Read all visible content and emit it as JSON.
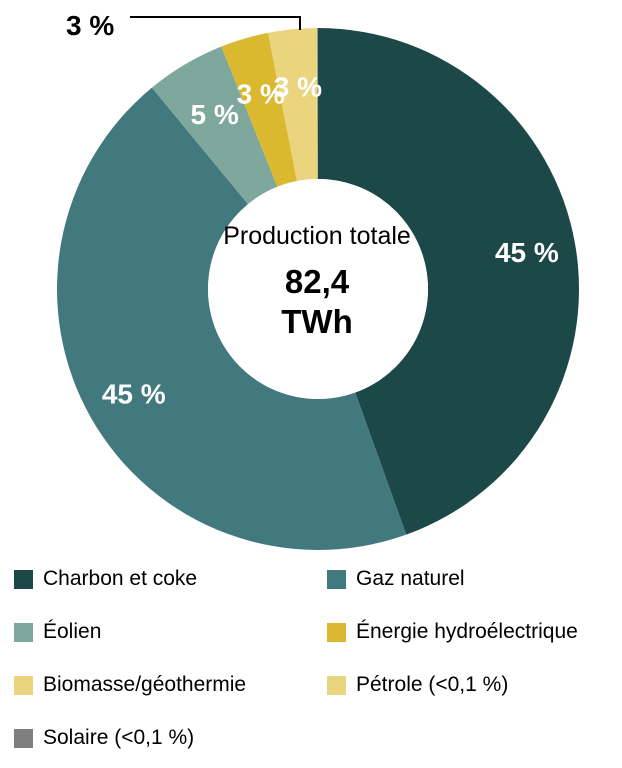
{
  "chart_data": {
    "type": "pie",
    "center_title": "Production totale",
    "center_value_line1": "82,4",
    "center_value_line2": "TWh",
    "slices": [
      {
        "name": "Charbon et coke",
        "value": 45,
        "label": "45 %",
        "color": "#1c4848"
      },
      {
        "name": "Gaz naturel",
        "value": 45,
        "label": "45 %",
        "color": "#42797e"
      },
      {
        "name": "Éolien",
        "value": 5,
        "label": "5 %",
        "color": "#7fa89d"
      },
      {
        "name": "Énergie hydroélectrique",
        "value": 3,
        "label": "3 %",
        "color": "#dab830"
      },
      {
        "name": "Biomasse/géothermie",
        "value": 3,
        "label": "3 %",
        "color": "#ead57e"
      },
      {
        "name": "Pétrole (<0,1 %)",
        "value": 0.05,
        "label": "",
        "color": "#ead57e"
      },
      {
        "name": "Solaire (<0,1 %)",
        "value": 0.05,
        "label": "",
        "color": "#7f7f7f"
      }
    ],
    "callout_label": "3 %",
    "legend": [
      {
        "label": "Charbon et coke",
        "color": "#1c4848"
      },
      {
        "label": "Gaz naturel",
        "color": "#42797e"
      },
      {
        "label": "Éolien",
        "color": "#7fa89d"
      },
      {
        "label": "Énergie hydroélectrique",
        "color": "#dab830"
      },
      {
        "label": "Biomasse/géothermie",
        "color": "#ead57e"
      },
      {
        "label": "Pétrole (<0,1 %)",
        "color": "#ead57e"
      },
      {
        "label": "Solaire (<0,1 %)",
        "color": "#7f7f7f"
      }
    ]
  }
}
